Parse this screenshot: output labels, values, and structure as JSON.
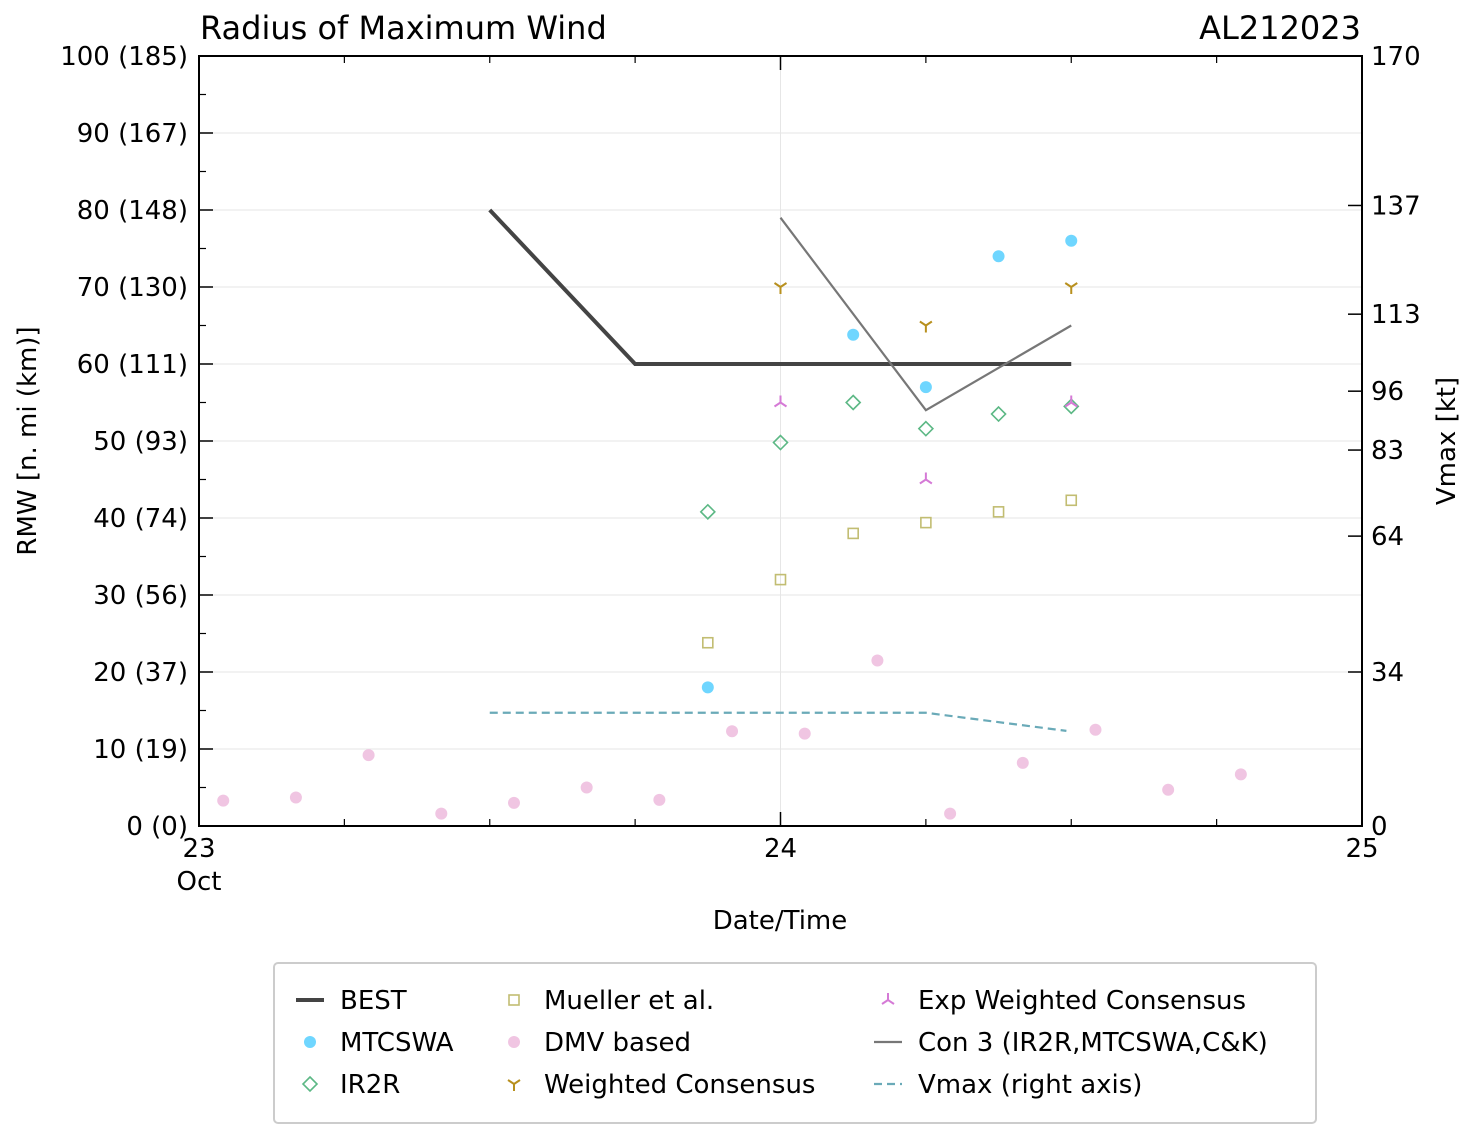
{
  "chart_data": {
    "type": "scatter",
    "title": "Radius of Maximum Wind",
    "storm_id": "AL212023",
    "xlabel": "Date/Time",
    "ylabel": "RMW [n. mi (km)]",
    "y2label": "Vmax [kt]",
    "xlim": [
      0,
      48
    ],
    "ylim": [
      0,
      100
    ],
    "y2lim": [
      0,
      170
    ],
    "x_ticks": [
      {
        "x": 0,
        "label": "23",
        "sublabel": "Oct"
      },
      {
        "x": 24,
        "label": "24",
        "sublabel": ""
      },
      {
        "x": 48,
        "label": "25",
        "sublabel": ""
      }
    ],
    "x_minor_ticks": [
      6,
      12,
      18,
      30,
      36,
      42
    ],
    "y_ticks": [
      {
        "v": 0,
        "label": "0 (0)"
      },
      {
        "v": 10,
        "label": "10 (19)"
      },
      {
        "v": 20,
        "label": "20 (37)"
      },
      {
        "v": 30,
        "label": "30 (56)"
      },
      {
        "v": 40,
        "label": "40 (74)"
      },
      {
        "v": 50,
        "label": "50 (93)"
      },
      {
        "v": 60,
        "label": "60 (111)"
      },
      {
        "v": 70,
        "label": "70 (130)"
      },
      {
        "v": 80,
        "label": "80 (148)"
      },
      {
        "v": 90,
        "label": "90 (167)"
      },
      {
        "v": 100,
        "label": "100 (185)"
      }
    ],
    "y_minor_ticks": [
      5,
      15,
      25,
      35,
      45,
      55,
      65,
      75,
      85,
      95
    ],
    "y2_ticks": [
      {
        "v": 0,
        "label": "0"
      },
      {
        "v": 34,
        "label": "34"
      },
      {
        "v": 64,
        "label": "64"
      },
      {
        "v": 83,
        "label": "83"
      },
      {
        "v": 96,
        "label": "96"
      },
      {
        "v": 113,
        "label": "113"
      },
      {
        "v": 137,
        "label": "137"
      },
      {
        "v": 170,
        "label": "170"
      }
    ],
    "series": [
      {
        "name": "BEST",
        "kind": "line",
        "color": "#444444",
        "width": 4,
        "points": [
          [
            12,
            80
          ],
          [
            18,
            60
          ],
          [
            36,
            60
          ]
        ]
      },
      {
        "name": "Con 3 (IR2R,MTCSWA,C&K)",
        "kind": "line",
        "color": "#777777",
        "width": 2.2,
        "points": [
          [
            24,
            79
          ],
          [
            30,
            54
          ],
          [
            36,
            65
          ]
        ]
      },
      {
        "name": "Vmax (right axis)",
        "kind": "dashed",
        "color": "#6aaab8",
        "width": 2.2,
        "axis": "right",
        "points": [
          [
            12,
            25
          ],
          [
            30,
            25
          ],
          [
            35.8,
            21
          ]
        ]
      },
      {
        "name": "MTCSWA",
        "kind": "circle",
        "color": "#6fd6ff",
        "points": [
          [
            21,
            18
          ],
          [
            27,
            63.8
          ],
          [
            30,
            57
          ],
          [
            33,
            74
          ],
          [
            36,
            76
          ]
        ]
      },
      {
        "name": "IR2R",
        "kind": "diamond",
        "color": "#5cb885",
        "points": [
          [
            21,
            40.8
          ],
          [
            24,
            49.8
          ],
          [
            27,
            55
          ],
          [
            30,
            51.6
          ],
          [
            33,
            53.5
          ],
          [
            36,
            54.5
          ]
        ]
      },
      {
        "name": "Mueller et al.",
        "kind": "square",
        "color": "#c2bd72",
        "points": [
          [
            21,
            23.8
          ],
          [
            24,
            32
          ],
          [
            27,
            38
          ],
          [
            30,
            39.4
          ],
          [
            33,
            40.8
          ],
          [
            36,
            42.3
          ]
        ]
      },
      {
        "name": "DMV based",
        "kind": "dot",
        "color": "#f0c5e2",
        "points": [
          [
            1,
            3.3
          ],
          [
            4,
            3.7
          ],
          [
            7,
            9.2
          ],
          [
            10,
            1.6
          ],
          [
            13,
            3
          ],
          [
            16,
            5
          ],
          [
            19,
            3.4
          ],
          [
            22,
            12.3
          ],
          [
            25,
            12
          ],
          [
            28,
            21.5
          ],
          [
            31,
            1.6
          ],
          [
            34,
            8.2
          ],
          [
            37,
            12.5
          ],
          [
            40,
            4.7
          ],
          [
            43,
            6.7
          ]
        ]
      },
      {
        "name": "Weighted Consensus",
        "kind": "tri_down",
        "color": "#b8901e",
        "points": [
          [
            24,
            70
          ],
          [
            30,
            65
          ],
          [
            36,
            70
          ]
        ]
      },
      {
        "name": "Exp Weighted Consensus",
        "kind": "tri_up",
        "color": "#d57ad6",
        "points": [
          [
            24,
            55
          ],
          [
            30,
            45
          ],
          [
            36,
            55
          ]
        ]
      }
    ],
    "legend": {
      "position": "bottom",
      "columns": [
        [
          "BEST",
          "MTCSWA",
          "IR2R"
        ],
        [
          "Mueller et al.",
          "DMV based",
          "Weighted Consensus"
        ],
        [
          "Exp Weighted Consensus",
          "Con 3 (IR2R,MTCSWA,C&K)",
          "Vmax (right axis)"
        ]
      ]
    }
  }
}
